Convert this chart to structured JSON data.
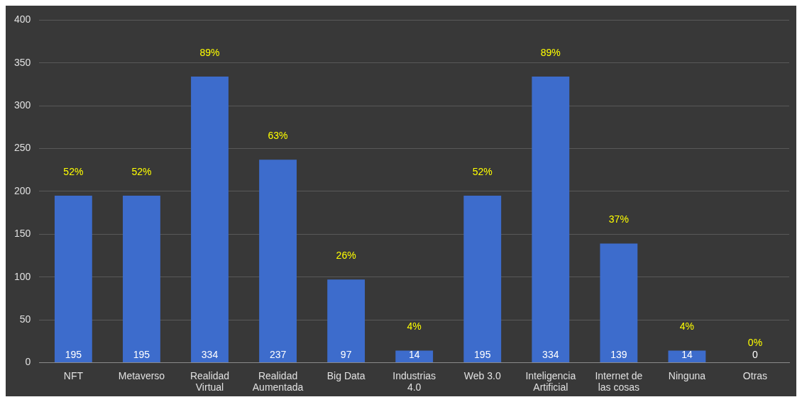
{
  "chart_data": {
    "type": "bar",
    "categories": [
      "NFT",
      "Metaverso",
      "Realidad Virtual",
      "Realidad Aumentada",
      "Big Data",
      "Industrias 4.0",
      "Web 3.0",
      "Inteligencia Artificial",
      "Internet de las cosas",
      "Ninguna",
      "Otras"
    ],
    "values": [
      195,
      195,
      334,
      237,
      97,
      14,
      195,
      334,
      139,
      14,
      0
    ],
    "color": "#3d6ccc",
    "ylim": [
      0,
      400
    ],
    "yticks": [
      0,
      50,
      100,
      150,
      200,
      250,
      300,
      350,
      400
    ],
    "grid": "y",
    "legend": false,
    "data_labels": true,
    "annotations": [
      {
        "text": "52%",
        "x": "NFT",
        "y": 195
      },
      {
        "text": "52%",
        "x": "Metaverso",
        "y": 195
      },
      {
        "text": "89%",
        "x": "Realidad Virtual",
        "y": 334
      },
      {
        "text": "63%",
        "x": "Realidad Aumentada",
        "y": 237
      },
      {
        "text": "26%",
        "x": "Big Data",
        "y": 97
      },
      {
        "text": "4%",
        "x": "Industrias 4.0",
        "y": 14
      },
      {
        "text": "52%",
        "x": "Web 3.0",
        "y": 195
      },
      {
        "text": "89%",
        "x": "Inteligencia Artificial",
        "y": 334
      },
      {
        "text": "37%",
        "x": "Internet de las cosas",
        "y": 139
      },
      {
        "text": "4%",
        "x": "Ninguna",
        "y": 14
      },
      {
        "text": "0%",
        "x": "Otras",
        "y": 0
      }
    ]
  }
}
